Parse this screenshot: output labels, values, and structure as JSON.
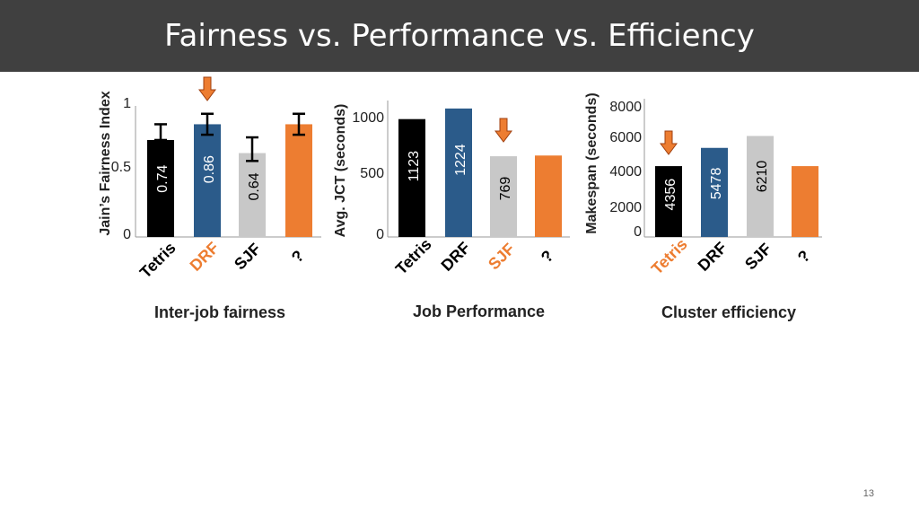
{
  "slide": {
    "title": "Fairness vs. Performance vs. Efficiency",
    "page_number": "13"
  },
  "chart_data": [
    {
      "type": "bar",
      "subtitle": "Inter-job fairness",
      "ylabel": "Jain’s Fairness Index",
      "ylim": [
        0,
        1
      ],
      "yticks": [
        "0",
        "0.5",
        "1"
      ],
      "categories": [
        "Tetris",
        "DRF",
        "SJF",
        "?"
      ],
      "values": [
        0.74,
        0.86,
        0.64,
        0.86
      ],
      "error_high": [
        0.86,
        0.94,
        0.76,
        0.94
      ],
      "error_low": [
        0.74,
        0.78,
        0.58,
        0.78
      ],
      "value_labels": [
        "0.74",
        "0.86",
        "0.64",
        ""
      ],
      "bar_colors": [
        "#000000",
        "#2b5b8a",
        "#c8c8c8",
        "#ed7d31"
      ],
      "label_colors": [
        "#ffffff",
        "#ffffff",
        "#000000",
        "#ffffff"
      ],
      "category_colors": [
        "#000000",
        "#ed7d31",
        "#000000",
        "#000000"
      ],
      "highlight_index": 1
    },
    {
      "type": "bar",
      "subtitle": "Job Performance",
      "ylabel": "Avg. JCT (seconds)",
      "ylim": [
        0,
        1300
      ],
      "yticks": [
        "0",
        "500",
        "1000"
      ],
      "categories": [
        "Tetris",
        "DRF",
        "SJF",
        "?"
      ],
      "values": [
        1123,
        1224,
        769,
        776
      ],
      "value_labels": [
        "1123",
        "1224",
        "769",
        ""
      ],
      "bar_colors": [
        "#000000",
        "#2b5b8a",
        "#c8c8c8",
        "#ed7d31"
      ],
      "label_colors": [
        "#ffffff",
        "#ffffff",
        "#000000",
        "#ffffff"
      ],
      "category_colors": [
        "#000000",
        "#000000",
        "#ed7d31",
        "#000000"
      ],
      "highlight_index": 2
    },
    {
      "type": "bar",
      "subtitle": "Cluster efficiency",
      "ylabel": "Makespan (seconds)",
      "ylim": [
        0,
        8500
      ],
      "yticks": [
        "0",
        "2000",
        "4000",
        "6000",
        "8000"
      ],
      "categories": [
        "Tetris",
        "DRF",
        "SJF",
        "?"
      ],
      "values": [
        4356,
        5478,
        6210,
        4356
      ],
      "value_labels": [
        "4356",
        "5478",
        "6210",
        ""
      ],
      "bar_colors": [
        "#000000",
        "#2b5b8a",
        "#c8c8c8",
        "#ed7d31"
      ],
      "label_colors": [
        "#ffffff",
        "#ffffff",
        "#000000",
        "#ffffff"
      ],
      "category_colors": [
        "#ed7d31",
        "#000000",
        "#000000",
        "#000000"
      ],
      "highlight_index": 0
    }
  ],
  "arrow_color": "#ed7d31"
}
